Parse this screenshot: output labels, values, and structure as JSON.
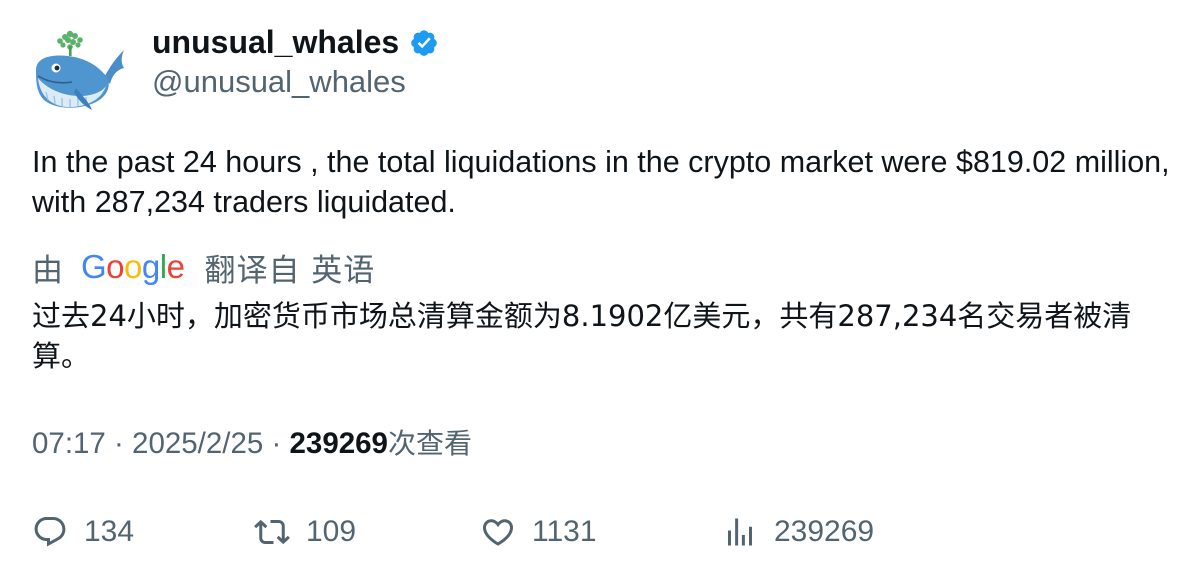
{
  "author": {
    "display_name": "unusual_whales",
    "handle": "@unusual_whales",
    "verified_icon": "verified-badge-icon",
    "verified_color": "#1d9bf0"
  },
  "tweet": {
    "text": "In the past 24 hours , the total liquidations in the crypto market were $819.02 million, with 287,234 traders liquidated.",
    "translation": {
      "by_label": "由",
      "google_letters": [
        "G",
        "o",
        "o",
        "g",
        "l",
        "e"
      ],
      "from_label": "翻译自 英语",
      "text": "过去24小时，加密货币市场总清算金额为8.1902亿美元，共有287,234名交易者被清算。"
    },
    "time": "07:17",
    "separator": " · ",
    "date": "2025/2/25",
    "views_count": "239269",
    "views_label": "次查看"
  },
  "actions": {
    "reply_count": "134",
    "retweet_count": "109",
    "like_count": "1131",
    "views_count": "239269"
  }
}
